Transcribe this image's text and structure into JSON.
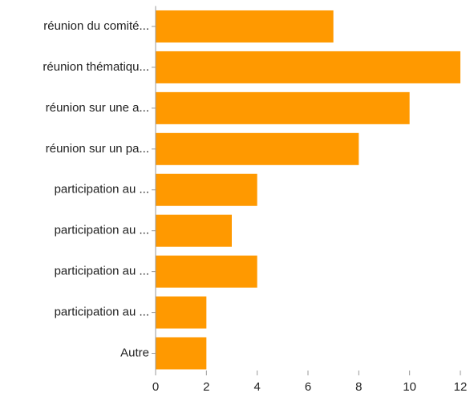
{
  "chart_data": {
    "type": "bar",
    "orientation": "horizontal",
    "categories": [
      "réunion du comité...",
      "réunion thématiqu...",
      "réunion sur une a...",
      "réunion sur un pa...",
      "participation au ...",
      "participation au ...",
      "participation au ...",
      "participation au ...",
      "Autre"
    ],
    "values": [
      7,
      12,
      10,
      8,
      4,
      3,
      4,
      2,
      2
    ],
    "color": "#ff9900",
    "xlim": [
      0,
      12
    ],
    "xticks": [
      0,
      2,
      4,
      6,
      8,
      10,
      12
    ],
    "grid": false
  }
}
